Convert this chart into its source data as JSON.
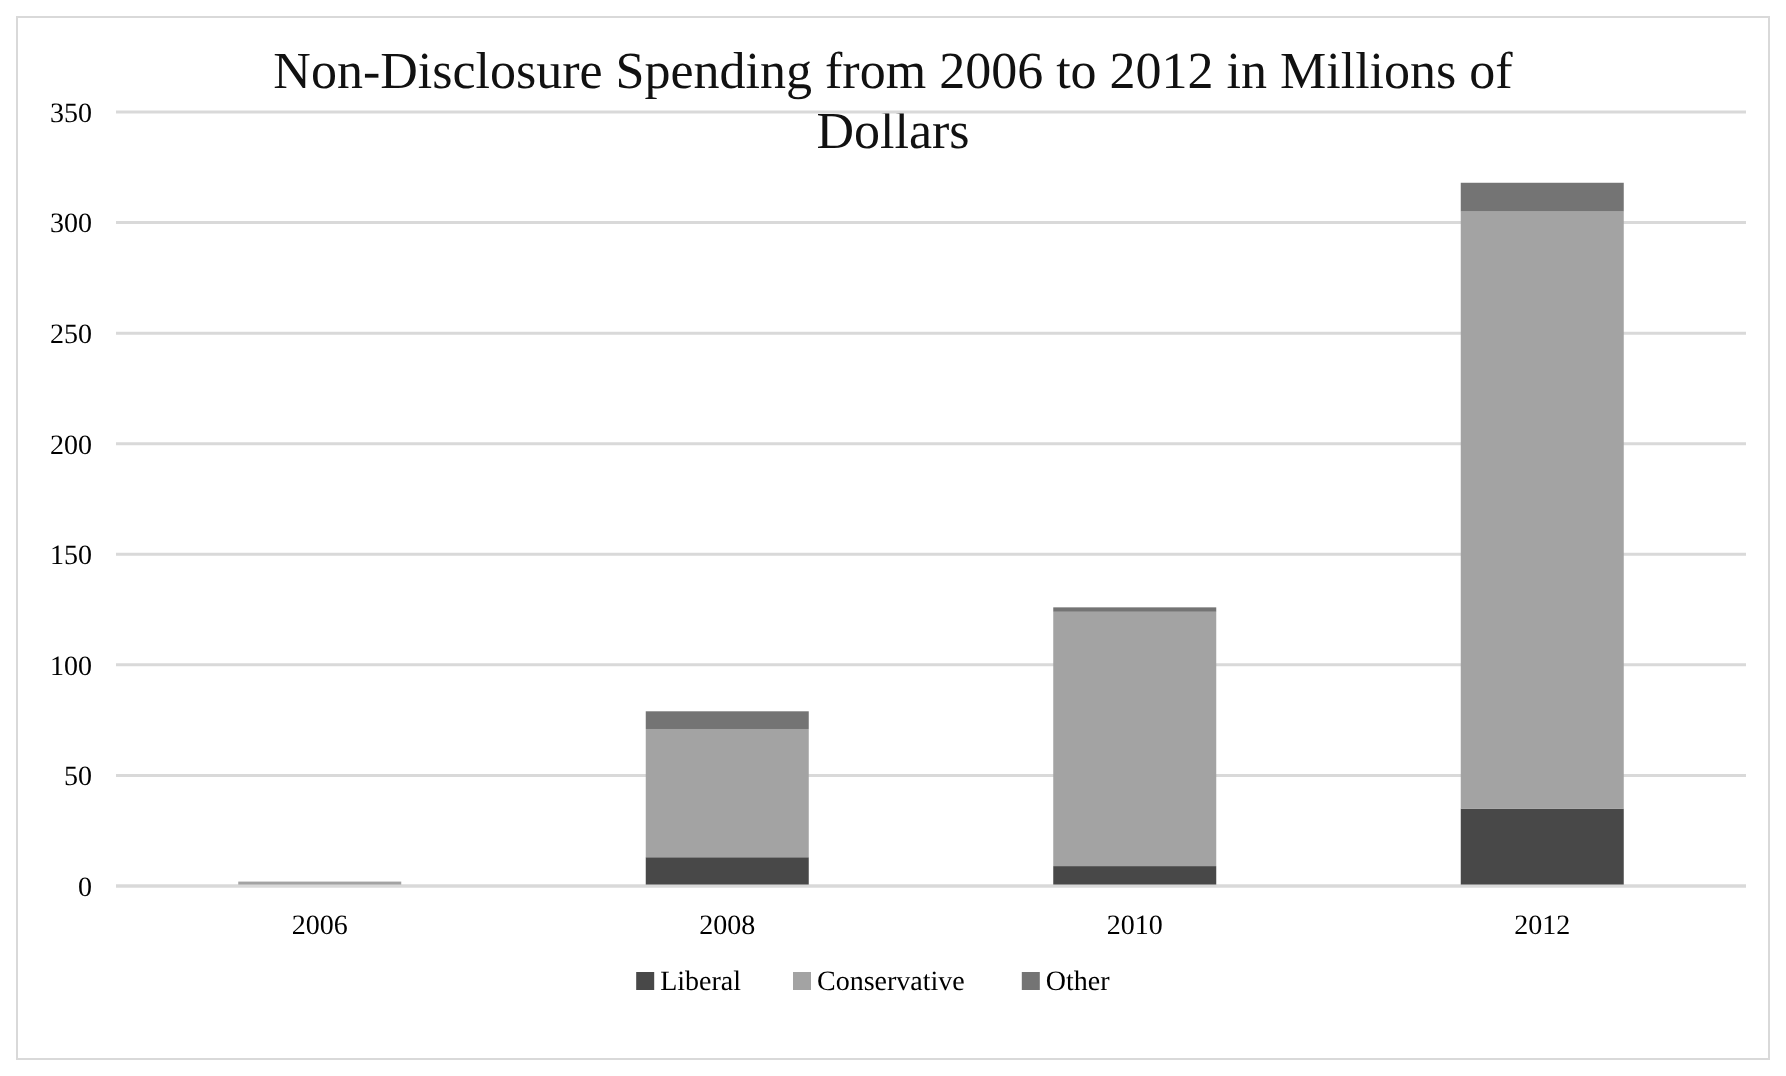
{
  "chart_data": {
    "type": "bar",
    "title": "Non-Disclosure Spending from 2006 to 2012 in Millions of Dollars",
    "categories": [
      "2006",
      "2008",
      "2010",
      "2012"
    ],
    "stacked": true,
    "series": [
      {
        "name": "Liberal",
        "color": "#484848",
        "values": [
          0,
          13,
          9,
          35
        ]
      },
      {
        "name": "Conservative",
        "color": "#a3a3a3",
        "values": [
          2,
          58,
          115,
          270
        ]
      },
      {
        "name": "Other",
        "color": "#747474",
        "values": [
          0,
          8,
          2,
          13
        ]
      }
    ],
    "ylim": [
      0,
      350
    ],
    "yticks": [
      0,
      50,
      100,
      150,
      200,
      250,
      300,
      350
    ],
    "grid": "y",
    "legend": "bottom"
  }
}
